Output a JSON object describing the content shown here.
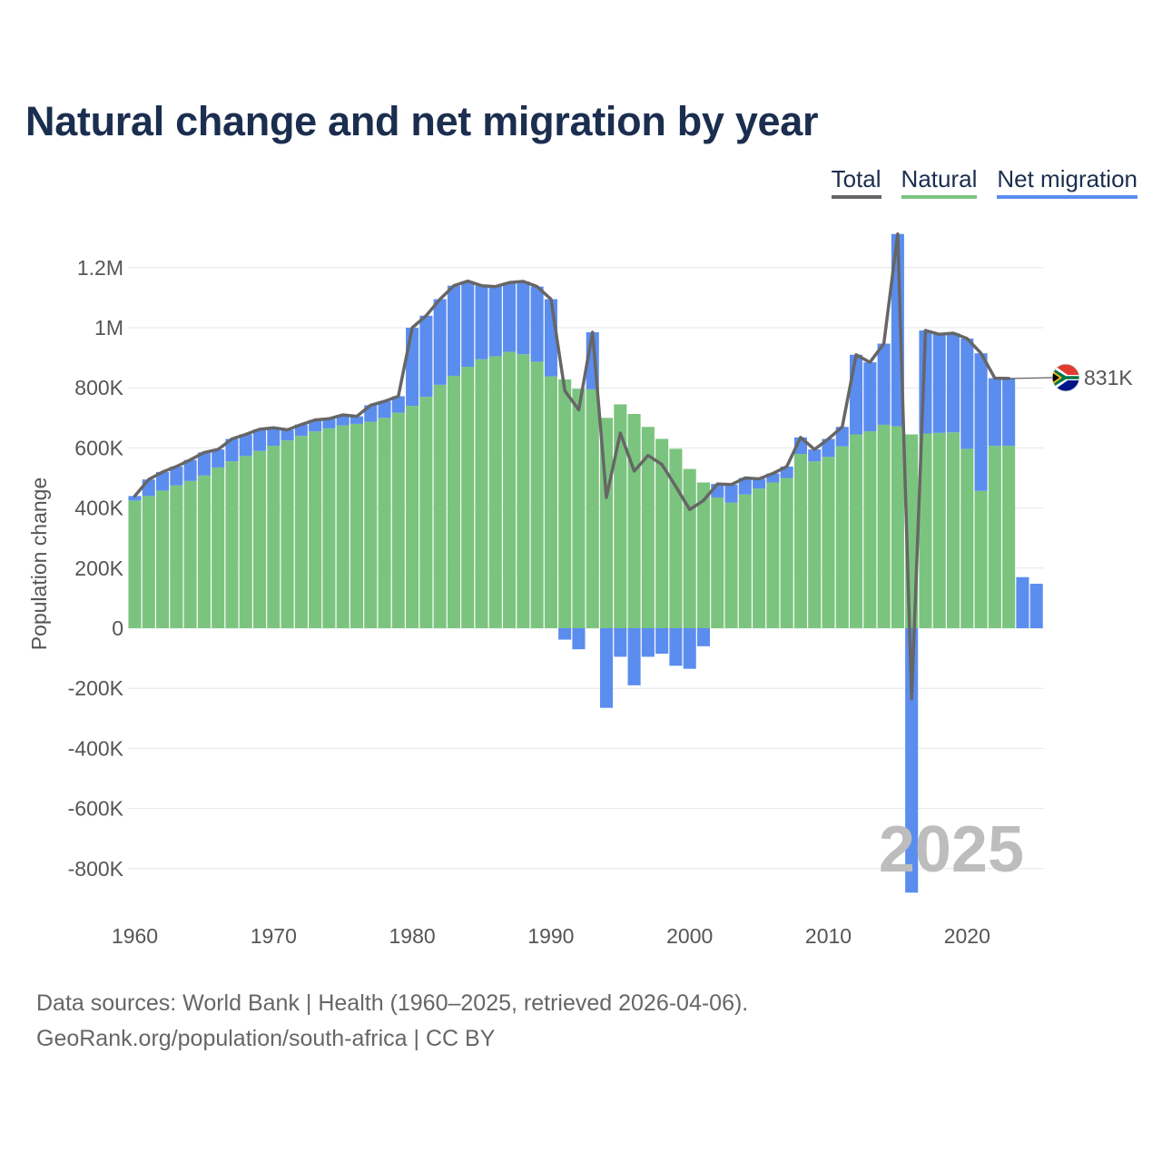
{
  "title": "Natural change and net migration by year",
  "legend": {
    "total": {
      "label": "Total",
      "color": "#666666"
    },
    "natural": {
      "label": "Natural",
      "color": "#7bc47f"
    },
    "net_migration": {
      "label": "Net migration",
      "color": "#5b8def"
    }
  },
  "footer": {
    "line1": "Data sources: World Bank | Health (1960–2025, retrieved 2026-04-06).",
    "line2": "GeoRank.org/population/south-africa | CC BY"
  },
  "year_watermark": "2025",
  "end_label": "831K",
  "flag_icon": "south-africa-flag-icon",
  "chart_data": {
    "type": "bar",
    "stacked": true,
    "ylabel": "Population change",
    "xlabel": "",
    "ylim": [
      -880000,
      1310000
    ],
    "xlim": [
      1960,
      2025
    ],
    "yticks": [
      {
        "value": 1200000,
        "label": "1.2M"
      },
      {
        "value": 1000000,
        "label": "1M"
      },
      {
        "value": 800000,
        "label": "800K"
      },
      {
        "value": 600000,
        "label": "600K"
      },
      {
        "value": 400000,
        "label": "400K"
      },
      {
        "value": 200000,
        "label": "200K"
      },
      {
        "value": 0,
        "label": "0"
      },
      {
        "value": -200000,
        "label": "-200K"
      },
      {
        "value": -400000,
        "label": "-400K"
      },
      {
        "value": -600000,
        "label": "-600K"
      },
      {
        "value": -800000,
        "label": "-800K"
      }
    ],
    "xticks": [
      {
        "value": 1960,
        "label": "1960"
      },
      {
        "value": 1970,
        "label": "1970"
      },
      {
        "value": 1980,
        "label": "1980"
      },
      {
        "value": 1990,
        "label": "1990"
      },
      {
        "value": 2000,
        "label": "2000"
      },
      {
        "value": 2010,
        "label": "2010"
      },
      {
        "value": 2020,
        "label": "2020"
      }
    ],
    "years": [
      1960,
      1961,
      1962,
      1963,
      1964,
      1965,
      1966,
      1967,
      1968,
      1969,
      1970,
      1971,
      1972,
      1973,
      1974,
      1975,
      1976,
      1977,
      1978,
      1979,
      1980,
      1981,
      1982,
      1983,
      1984,
      1985,
      1986,
      1987,
      1988,
      1989,
      1990,
      1991,
      1992,
      1993,
      1994,
      1995,
      1996,
      1997,
      1998,
      1999,
      2000,
      2001,
      2002,
      2003,
      2004,
      2005,
      2006,
      2007,
      2008,
      2009,
      2010,
      2011,
      2012,
      2013,
      2014,
      2015,
      2016,
      2017,
      2018,
      2019,
      2020,
      2021,
      2022,
      2023,
      2024,
      2025
    ],
    "series": [
      {
        "name": "Natural",
        "values": [
          425000,
          440000,
          458000,
          475000,
          490000,
          508000,
          535000,
          555000,
          573000,
          590000,
          607000,
          625000,
          640000,
          655000,
          665000,
          675000,
          680000,
          687000,
          700000,
          717000,
          740000,
          770000,
          810000,
          840000,
          870000,
          895000,
          905000,
          920000,
          912000,
          887000,
          838000,
          828000,
          797000,
          795000,
          700000,
          745000,
          713000,
          670000,
          630000,
          597000,
          530000,
          485000,
          435000,
          418000,
          445000,
          465000,
          485000,
          500000,
          580000,
          555000,
          570000,
          605000,
          645000,
          655000,
          677000,
          672000,
          645000,
          648000,
          650000,
          652000,
          597000,
          457000,
          607000,
          607000,
          null,
          null
        ]
      },
      {
        "name": "Net migration",
        "values": [
          15000,
          55000,
          62000,
          63000,
          70000,
          77000,
          60000,
          75000,
          72000,
          72000,
          60000,
          35000,
          38000,
          38000,
          32000,
          35000,
          25000,
          55000,
          55000,
          55000,
          260000,
          270000,
          285000,
          300000,
          285000,
          245000,
          232000,
          230000,
          242000,
          250000,
          257000,
          -38000,
          -70000,
          190000,
          -265000,
          -95000,
          -190000,
          -95000,
          -85000,
          -125000,
          -135000,
          -60000,
          45000,
          60000,
          55000,
          32000,
          30000,
          38000,
          55000,
          40000,
          60000,
          65000,
          265000,
          230000,
          270000,
          640000,
          -880000,
          343000,
          328000,
          330000,
          367000,
          458000,
          225000,
          224000,
          170000,
          148000
        ]
      },
      {
        "name": "Total",
        "values": [
          440000,
          495000,
          520000,
          538000,
          560000,
          585000,
          595000,
          630000,
          645000,
          662000,
          667000,
          660000,
          678000,
          693000,
          697000,
          710000,
          705000,
          742000,
          755000,
          772000,
          1000000,
          1040000,
          1095000,
          1140000,
          1155000,
          1140000,
          1137000,
          1150000,
          1154000,
          1137000,
          1095000,
          790000,
          727000,
          985000,
          435000,
          650000,
          523000,
          575000,
          545000,
          472000,
          395000,
          425000,
          480000,
          478000,
          500000,
          497000,
          515000,
          538000,
          635000,
          595000,
          630000,
          670000,
          910000,
          885000,
          947000,
          1312000,
          -235000,
          991000,
          978000,
          982000,
          964000,
          915000,
          832000,
          831000,
          null,
          null
        ]
      }
    ]
  }
}
